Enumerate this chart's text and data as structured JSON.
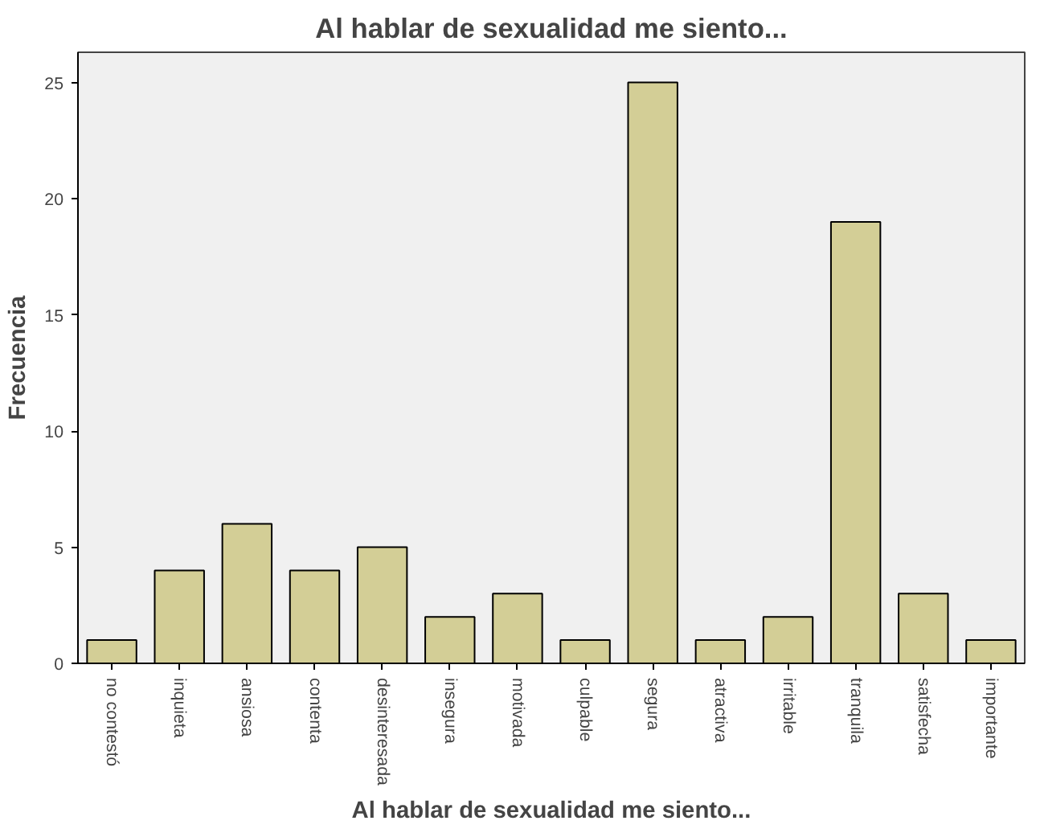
{
  "chart_data": {
    "type": "bar",
    "title": "Al hablar de sexualidad me siento...",
    "xlabel": "Al hablar de sexualidad me siento...",
    "ylabel": "Frecuencia",
    "categories": [
      "no contestó",
      "inquieta",
      "ansiosa",
      "contenta",
      "desinteresada",
      "insegura",
      "motivada",
      "culpable",
      "segura",
      "atractiva",
      "irritable",
      "tranquila",
      "satisfecha",
      "importante"
    ],
    "values": [
      1,
      4,
      6,
      4,
      5,
      2,
      3,
      1,
      25,
      1,
      2,
      19,
      3,
      1
    ],
    "color": "#d3ce96",
    "ylim": [
      0,
      26.3
    ],
    "yticks": [
      0,
      5,
      10,
      15,
      20,
      25
    ],
    "grid": false
  }
}
